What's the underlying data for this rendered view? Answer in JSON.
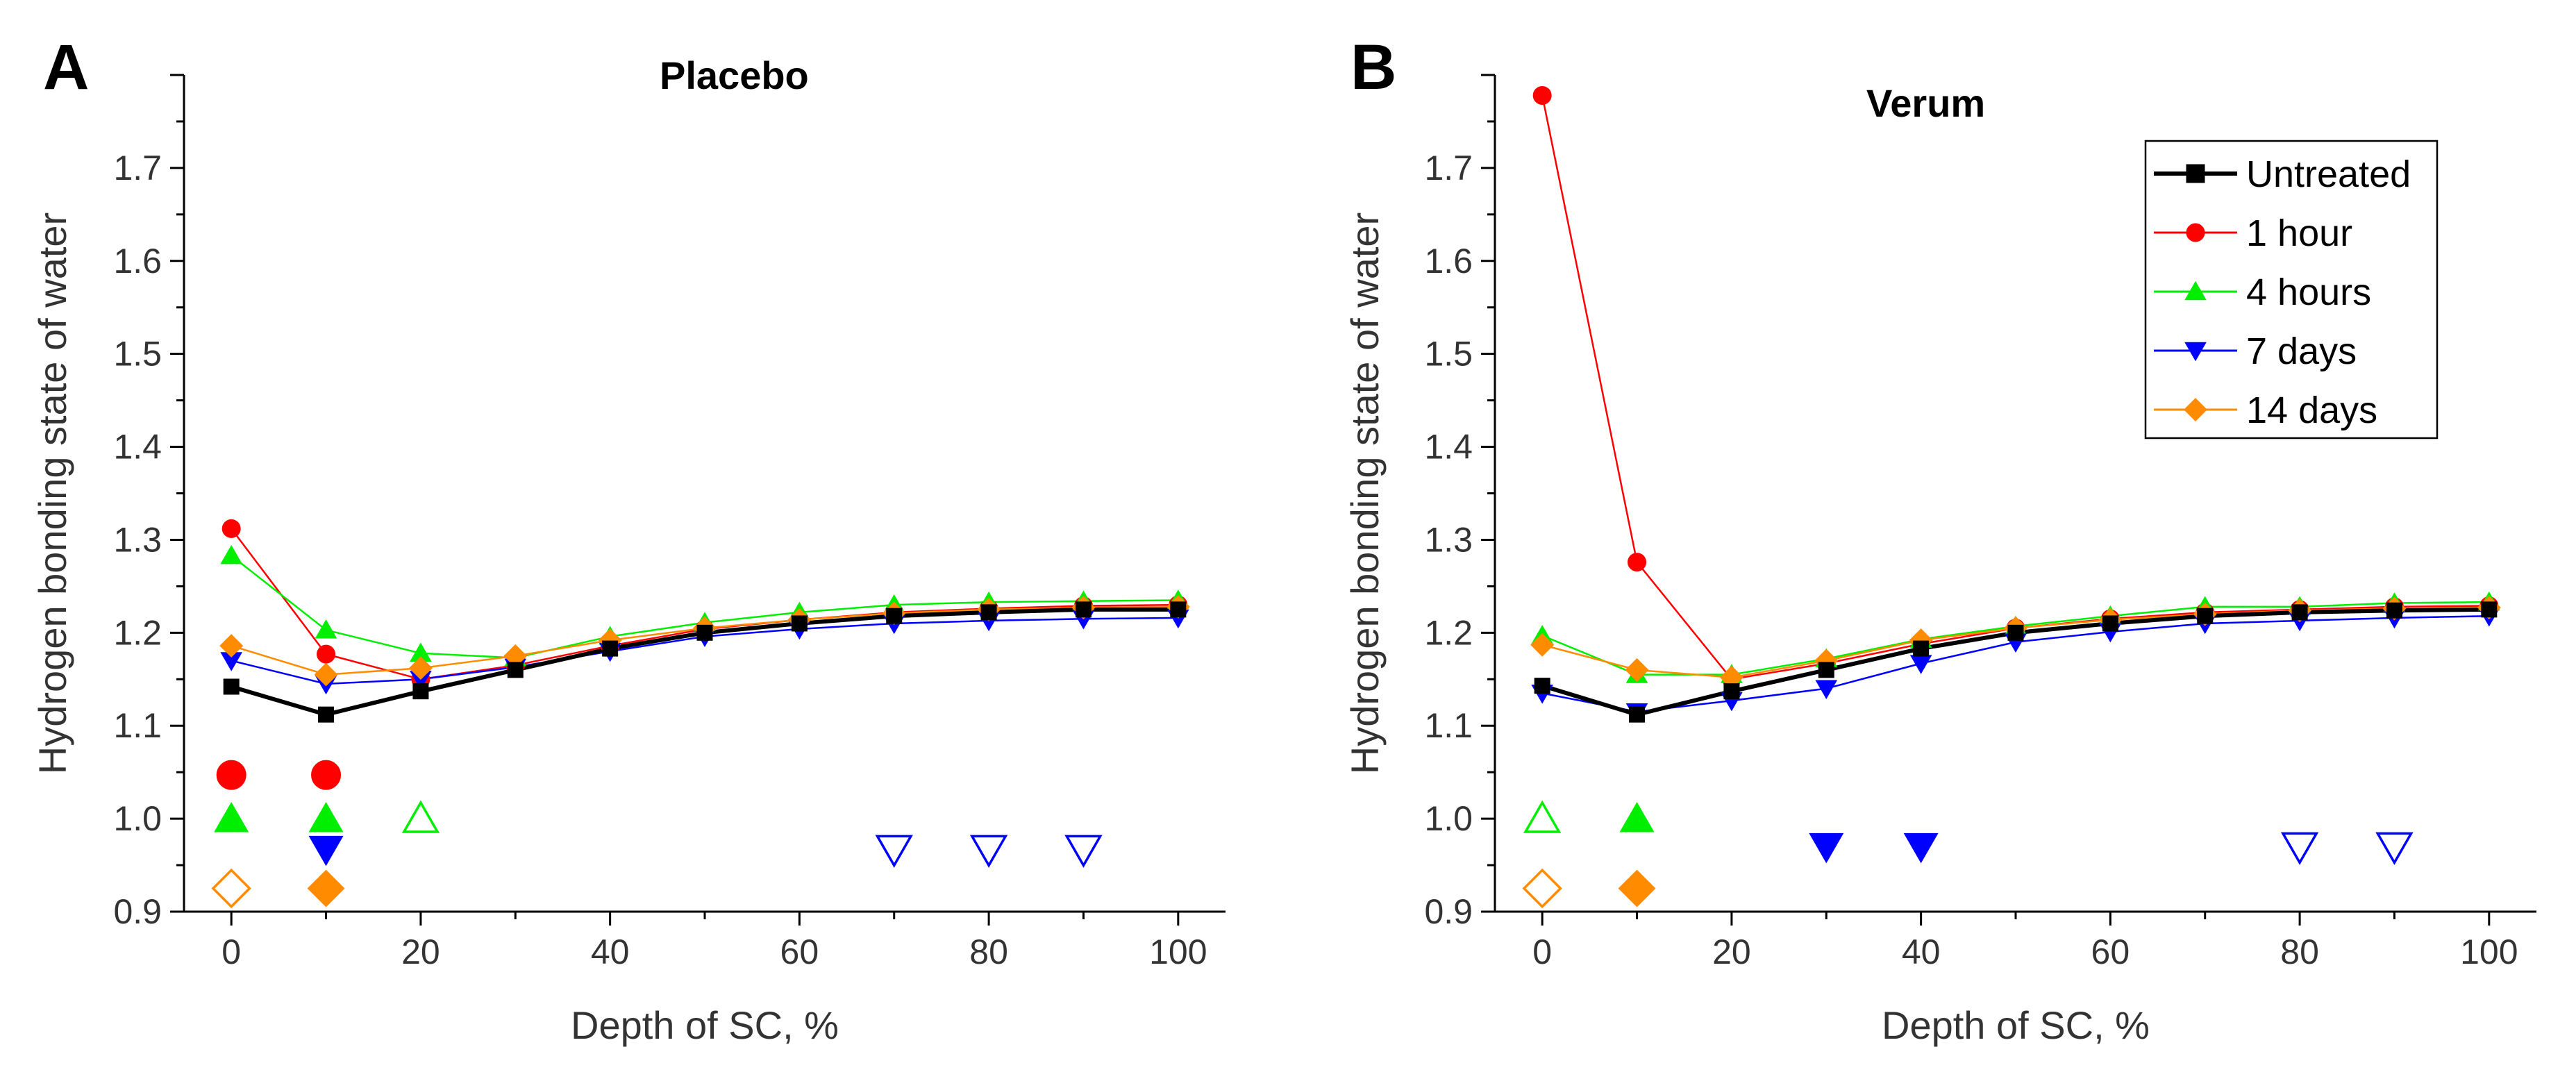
{
  "chart_data": [
    {
      "type": "line",
      "panel_label": "A",
      "title": "Placebo",
      "xlabel": "Depth of SC, %",
      "ylabel": "Hydrogen bonding state of water",
      "xlim": [
        -5,
        105
      ],
      "ylim": [
        0.9,
        1.8
      ],
      "xticks": [
        0,
        20,
        40,
        60,
        80,
        100
      ],
      "xtick_labels": [
        "0",
        "20",
        "40",
        "60",
        "80",
        "100"
      ],
      "yticks": [
        0.9,
        1.0,
        1.1,
        1.2,
        1.3,
        1.4,
        1.5,
        1.6,
        1.7
      ],
      "ytick_labels": [
        "0.9",
        "1.0",
        "1.1",
        "1.2",
        "1.3",
        "1.4",
        "1.5",
        "1.6",
        "1.7"
      ],
      "x": [
        0,
        10,
        20,
        30,
        40,
        50,
        60,
        70,
        80,
        90,
        100
      ],
      "series": [
        {
          "name": "Untreated",
          "color": "#000000",
          "marker": "square",
          "values": [
            1.142,
            1.112,
            1.137,
            1.16,
            1.183,
            1.2,
            1.21,
            1.218,
            1.222,
            1.225,
            1.225
          ]
        },
        {
          "name": "1 hour",
          "color": "#ff0000",
          "marker": "circle",
          "values": [
            1.312,
            1.177,
            1.15,
            1.165,
            1.186,
            1.204,
            1.214,
            1.222,
            1.226,
            1.229,
            1.23
          ]
        },
        {
          "name": "4 hours",
          "color": "#00ee00",
          "marker": "triangle-up",
          "values": [
            1.283,
            1.203,
            1.178,
            1.173,
            1.196,
            1.211,
            1.222,
            1.23,
            1.233,
            1.234,
            1.235
          ]
        },
        {
          "name": "7 days",
          "color": "#0000ff",
          "marker": "triangle-down",
          "values": [
            1.17,
            1.145,
            1.15,
            1.163,
            1.18,
            1.196,
            1.204,
            1.21,
            1.213,
            1.215,
            1.216
          ]
        },
        {
          "name": "14 days",
          "color": "#ff8c00",
          "marker": "diamond",
          "values": [
            1.186,
            1.155,
            1.162,
            1.175,
            1.192,
            1.205,
            1.214,
            1.221,
            1.225,
            1.227,
            1.228
          ]
        }
      ],
      "significance_markers": [
        {
          "series": "1 hour",
          "x": 0,
          "y": 1.047,
          "filled": true
        },
        {
          "series": "1 hour",
          "x": 10,
          "y": 1.047,
          "filled": true
        },
        {
          "series": "4 hours",
          "x": 0,
          "y": 1.0,
          "filled": true
        },
        {
          "series": "4 hours",
          "x": 10,
          "y": 1.0,
          "filled": true
        },
        {
          "series": "4 hours",
          "x": 20,
          "y": 1.0,
          "filled": false
        },
        {
          "series": "7 days",
          "x": 10,
          "y": 0.967,
          "filled": true
        },
        {
          "series": "7 days",
          "x": 70,
          "y": 0.967,
          "filled": false
        },
        {
          "series": "7 days",
          "x": 80,
          "y": 0.967,
          "filled": false
        },
        {
          "series": "7 days",
          "x": 90,
          "y": 0.967,
          "filled": false
        },
        {
          "series": "14 days",
          "x": 0,
          "y": 0.925,
          "filled": false
        },
        {
          "series": "14 days",
          "x": 10,
          "y": 0.925,
          "filled": true
        }
      ],
      "legend": null
    },
    {
      "type": "line",
      "panel_label": "B",
      "title": "Verum",
      "xlabel": "Depth of SC, %",
      "ylabel": "Hydrogen bonding state of water",
      "xlim": [
        -5,
        105
      ],
      "ylim": [
        0.9,
        1.8
      ],
      "xticks": [
        0,
        20,
        40,
        60,
        80,
        100
      ],
      "xtick_labels": [
        "0",
        "20",
        "40",
        "60",
        "80",
        "100"
      ],
      "yticks": [
        0.9,
        1.0,
        1.1,
        1.2,
        1.3,
        1.4,
        1.5,
        1.6,
        1.7
      ],
      "ytick_labels": [
        "0.9",
        "1.0",
        "1.1",
        "1.2",
        "1.3",
        "1.4",
        "1.5",
        "1.6",
        "1.7"
      ],
      "x": [
        0,
        10,
        20,
        30,
        40,
        50,
        60,
        70,
        80,
        90,
        100
      ],
      "series": [
        {
          "name": "Untreated",
          "color": "#000000",
          "marker": "square",
          "values": [
            1.143,
            1.112,
            1.137,
            1.16,
            1.183,
            1.2,
            1.21,
            1.218,
            1.222,
            1.224,
            1.225
          ]
        },
        {
          "name": "1 hour",
          "color": "#ff0000",
          "marker": "circle",
          "values": [
            1.778,
            1.276,
            1.15,
            1.167,
            1.188,
            1.205,
            1.215,
            1.222,
            1.225,
            1.228,
            1.229
          ]
        },
        {
          "name": "4 hours",
          "color": "#00ee00",
          "marker": "triangle-up",
          "values": [
            1.197,
            1.155,
            1.155,
            1.172,
            1.193,
            1.207,
            1.218,
            1.228,
            1.228,
            1.232,
            1.233
          ]
        },
        {
          "name": "7 days",
          "color": "#0000ff",
          "marker": "triangle-down",
          "values": [
            1.135,
            1.115,
            1.127,
            1.14,
            1.167,
            1.19,
            1.201,
            1.21,
            1.213,
            1.216,
            1.218
          ]
        },
        {
          "name": "14 days",
          "color": "#ff8c00",
          "marker": "diamond",
          "values": [
            1.187,
            1.16,
            1.152,
            1.17,
            1.192,
            1.205,
            1.214,
            1.22,
            1.224,
            1.226,
            1.227
          ]
        }
      ],
      "significance_markers": [
        {
          "series": "4 hours",
          "x": 0,
          "y": 1.0,
          "filled": false
        },
        {
          "series": "4 hours",
          "x": 10,
          "y": 1.0,
          "filled": true
        },
        {
          "series": "7 days",
          "x": 30,
          "y": 0.97,
          "filled": true
        },
        {
          "series": "7 days",
          "x": 40,
          "y": 0.97,
          "filled": true
        },
        {
          "series": "7 days",
          "x": 80,
          "y": 0.97,
          "filled": false
        },
        {
          "series": "7 days",
          "x": 90,
          "y": 0.97,
          "filled": false
        },
        {
          "series": "14 days",
          "x": 0,
          "y": 0.925,
          "filled": false
        },
        {
          "series": "14 days",
          "x": 10,
          "y": 0.925,
          "filled": true
        }
      ],
      "legend": {
        "location": "top-right",
        "entries": [
          "Untreated",
          "1 hour",
          "4 hours",
          "7 days",
          "14 days"
        ]
      }
    }
  ]
}
